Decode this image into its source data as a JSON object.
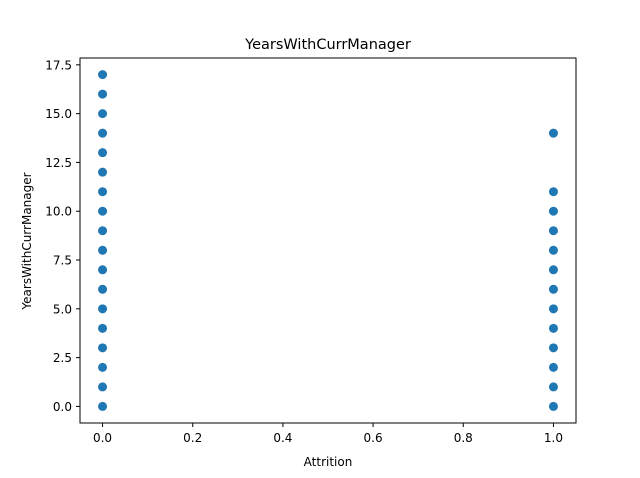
{
  "chart_data": {
    "type": "scatter",
    "title": "YearsWithCurrManager",
    "xlabel": "Attrition",
    "ylabel": "YearsWithCurrManager",
    "xlim": [
      -0.05,
      1.05
    ],
    "ylim": [
      -0.85,
      17.85
    ],
    "xticks": [
      0.0,
      0.2,
      0.4,
      0.6,
      0.8,
      1.0
    ],
    "xtick_labels": [
      "0.0",
      "0.2",
      "0.4",
      "0.6",
      "0.8",
      "1.0"
    ],
    "yticks": [
      0.0,
      2.5,
      5.0,
      7.5,
      10.0,
      12.5,
      15.0,
      17.5
    ],
    "ytick_labels": [
      "0.0",
      "2.5",
      "5.0",
      "7.5",
      "10.0",
      "12.5",
      "15.0",
      "17.5"
    ],
    "grid": false,
    "marker_color": "#1f77b4",
    "series": [
      {
        "points": [
          [
            0,
            0
          ],
          [
            0,
            1
          ],
          [
            0,
            2
          ],
          [
            0,
            3
          ],
          [
            0,
            4
          ],
          [
            0,
            5
          ],
          [
            0,
            6
          ],
          [
            0,
            7
          ],
          [
            0,
            8
          ],
          [
            0,
            9
          ],
          [
            0,
            10
          ],
          [
            0,
            11
          ],
          [
            0,
            12
          ],
          [
            0,
            13
          ],
          [
            0,
            14
          ],
          [
            0,
            15
          ],
          [
            0,
            16
          ],
          [
            0,
            17
          ],
          [
            1,
            0
          ],
          [
            1,
            1
          ],
          [
            1,
            2
          ],
          [
            1,
            3
          ],
          [
            1,
            4
          ],
          [
            1,
            5
          ],
          [
            1,
            6
          ],
          [
            1,
            7
          ],
          [
            1,
            8
          ],
          [
            1,
            9
          ],
          [
            1,
            10
          ],
          [
            1,
            11
          ],
          [
            1,
            14
          ]
        ]
      }
    ]
  }
}
